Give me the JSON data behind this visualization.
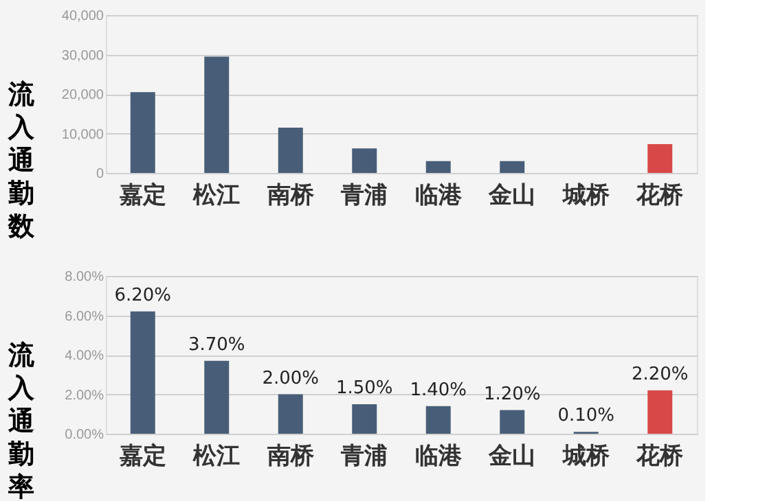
{
  "chart_data": [
    {
      "type": "bar",
      "ylabel": "流入通勤数",
      "categories": [
        "嘉定",
        "松江",
        "南桥",
        "青浦",
        "临港",
        "金山",
        "城桥",
        "花桥"
      ],
      "values": [
        20500,
        29500,
        11500,
        6200,
        3000,
        3000,
        0,
        7300
      ],
      "colors": [
        "#485e78",
        "#485e78",
        "#485e78",
        "#485e78",
        "#485e78",
        "#485e78",
        "#485e78",
        "#d94848"
      ],
      "ylim": [
        0,
        40000
      ],
      "yticks": [
        {
          "value": 0,
          "label": "0"
        },
        {
          "value": 10000,
          "label": "10,000"
        },
        {
          "value": 20000,
          "label": "20,000"
        },
        {
          "value": 30000,
          "label": "30,000"
        },
        {
          "value": 40000,
          "label": "40,000"
        }
      ],
      "grid": "y"
    },
    {
      "type": "bar",
      "ylabel": "流入通勤率",
      "categories": [
        "嘉定",
        "松江",
        "南桥",
        "青浦",
        "临港",
        "金山",
        "城桥",
        "花桥"
      ],
      "values": [
        6.2,
        3.7,
        2.0,
        1.5,
        1.4,
        1.2,
        0.1,
        2.2
      ],
      "value_labels": [
        "6.20%",
        "3.70%",
        "2.00%",
        "1.50%",
        "1.40%",
        "1.20%",
        "0.10%",
        "2.20%"
      ],
      "colors": [
        "#485e78",
        "#485e78",
        "#485e78",
        "#485e78",
        "#485e78",
        "#485e78",
        "#485e78",
        "#d94848"
      ],
      "ylim": [
        0,
        8
      ],
      "yticks": [
        {
          "value": 0,
          "label": "0.00%"
        },
        {
          "value": 2,
          "label": "2.00%"
        },
        {
          "value": 4,
          "label": "4.00%"
        },
        {
          "value": 6,
          "label": "6.00%"
        },
        {
          "value": 8,
          "label": "8.00%"
        }
      ],
      "grid": "y"
    }
  ]
}
